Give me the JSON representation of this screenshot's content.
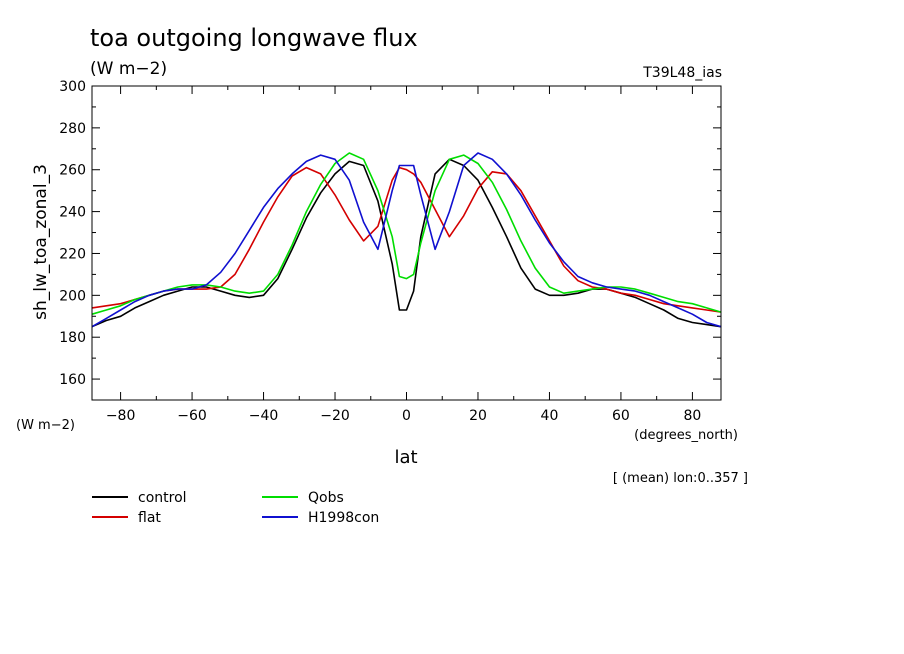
{
  "chart_data": {
    "type": "line",
    "title": "toa outgoing longwave flux",
    "subtitle": "(W m−2)",
    "run_label": "T39L48_ias",
    "ylabel": "sh_lw_toa_zonal_3",
    "yunits": "(W m−2)",
    "xlabel": "lat",
    "xunits": "(degrees_north)",
    "mean_note": "[ (mean) lon:0..357 ]",
    "xlim": [
      -88,
      88
    ],
    "ylim": [
      150,
      300
    ],
    "xticks": [
      -80,
      -60,
      -40,
      -20,
      0,
      20,
      40,
      60,
      80
    ],
    "yticks": [
      160,
      180,
      200,
      220,
      240,
      260,
      280,
      300
    ],
    "x": [
      -88,
      -84,
      -80,
      -76,
      -72,
      -68,
      -64,
      -60,
      -56,
      -52,
      -48,
      -44,
      -40,
      -36,
      -32,
      -28,
      -24,
      -20,
      -16,
      -12,
      -8,
      -4,
      -2,
      0,
      2,
      4,
      8,
      12,
      16,
      20,
      24,
      28,
      32,
      36,
      40,
      44,
      48,
      52,
      56,
      60,
      64,
      68,
      72,
      76,
      80,
      84,
      88
    ],
    "series": [
      {
        "name": "control",
        "color": "#000000",
        "values": [
          185,
          188,
          190,
          194,
          197,
          200,
          202,
          204,
          204,
          202,
          200,
          199,
          200,
          208,
          222,
          237,
          249,
          258,
          264,
          262,
          245,
          215,
          193,
          193,
          202,
          228,
          258,
          265,
          262,
          255,
          242,
          228,
          213,
          203,
          200,
          200,
          201,
          203,
          203,
          201,
          199,
          196,
          193,
          189,
          187,
          186,
          185
        ]
      },
      {
        "name": "flat",
        "color": "#d40000",
        "values": [
          194,
          195,
          196,
          198,
          200,
          202,
          203,
          203,
          203,
          204,
          210,
          222,
          235,
          247,
          257,
          261,
          258,
          248,
          236,
          226,
          233,
          255,
          261,
          260,
          258,
          254,
          241,
          228,
          238,
          251,
          259,
          258,
          250,
          238,
          226,
          214,
          207,
          204,
          203,
          201,
          200,
          198,
          196,
          195,
          194,
          193,
          192
        ]
      },
      {
        "name": "Qobs",
        "color": "#00dd00",
        "values": [
          191,
          193,
          195,
          198,
          200,
          202,
          204,
          205,
          205,
          204,
          202,
          201,
          202,
          210,
          224,
          240,
          253,
          263,
          268,
          265,
          250,
          228,
          209,
          208,
          210,
          225,
          250,
          265,
          267,
          263,
          254,
          241,
          226,
          213,
          204,
          201,
          202,
          203,
          204,
          204,
          203,
          201,
          199,
          197,
          196,
          194,
          192
        ]
      },
      {
        "name": "H1998con",
        "color": "#1010d0",
        "values": [
          185,
          189,
          193,
          197,
          200,
          202,
          203,
          203,
          205,
          211,
          220,
          231,
          242,
          251,
          258,
          264,
          267,
          265,
          255,
          235,
          222,
          250,
          262,
          262,
          262,
          248,
          222,
          240,
          262,
          268,
          265,
          258,
          248,
          236,
          225,
          216,
          209,
          206,
          204,
          203,
          202,
          200,
          197,
          194,
          191,
          187,
          185
        ]
      }
    ]
  }
}
